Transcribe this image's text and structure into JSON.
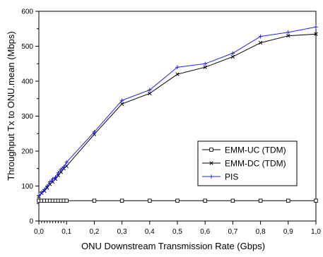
{
  "chart_data": {
    "type": "line",
    "xlabel": "ONU Downstream Transmission Rate (Gbps)",
    "ylabel": "Throughput Tx to ONU.mean (Mbps)",
    "xlim": [
      0,
      1.0
    ],
    "ylim": [
      0,
      600
    ],
    "x_ticks": [
      0.0,
      0.1,
      0.2,
      0.3,
      0.4,
      0.5,
      0.6,
      0.7,
      0.8,
      0.9,
      1.0
    ],
    "x_tick_labels": [
      "0,0",
      "0,1",
      "0,2",
      "0,3",
      "0,4",
      "0,5",
      "0,6",
      "0,7",
      "0,8",
      "0,9",
      "1,0"
    ],
    "y_ticks": [
      0,
      100,
      200,
      300,
      400,
      500,
      600
    ],
    "y_tick_labels": [
      "0",
      "100",
      "200",
      "300",
      "400",
      "500",
      "600"
    ],
    "x_minor_ticks": [
      0.01,
      0.02,
      0.03,
      0.04,
      0.05,
      0.06,
      0.07,
      0.08,
      0.09
    ],
    "grid": false,
    "legend_position": "right",
    "series": [
      {
        "name": "EMM-UC (TDM)",
        "color": "#000000",
        "marker": "square",
        "x": [
          0.0,
          0.01,
          0.02,
          0.03,
          0.04,
          0.05,
          0.06,
          0.07,
          0.08,
          0.09,
          0.1,
          0.2,
          0.3,
          0.4,
          0.5,
          0.6,
          0.7,
          0.8,
          0.9,
          1.0
        ],
        "y": [
          58,
          58,
          58,
          58,
          58,
          58,
          58,
          58,
          58,
          58,
          58,
          58,
          58,
          58,
          58,
          58,
          58,
          58,
          58,
          58
        ]
      },
      {
        "name": "EMM-DC (TDM)",
        "color": "#000000",
        "marker": "cross",
        "x": [
          0.0,
          0.01,
          0.02,
          0.03,
          0.04,
          0.05,
          0.06,
          0.07,
          0.08,
          0.09,
          0.1,
          0.2,
          0.3,
          0.4,
          0.5,
          0.6,
          0.7,
          0.8,
          0.9,
          1.0
        ],
        "y": [
          70,
          80,
          86,
          95,
          105,
          112,
          120,
          130,
          140,
          150,
          157,
          248,
          335,
          365,
          420,
          440,
          470,
          510,
          530,
          535
        ]
      },
      {
        "name": "PIS",
        "color": "#2424d8",
        "marker": "plus",
        "x": [
          0.0,
          0.01,
          0.02,
          0.03,
          0.04,
          0.05,
          0.06,
          0.07,
          0.08,
          0.09,
          0.1,
          0.2,
          0.3,
          0.4,
          0.5,
          0.6,
          0.7,
          0.8,
          0.9,
          1.0
        ],
        "y": [
          72,
          82,
          90,
          100,
          112,
          120,
          125,
          138,
          148,
          155,
          168,
          255,
          345,
          375,
          440,
          450,
          480,
          528,
          540,
          555
        ]
      }
    ]
  }
}
